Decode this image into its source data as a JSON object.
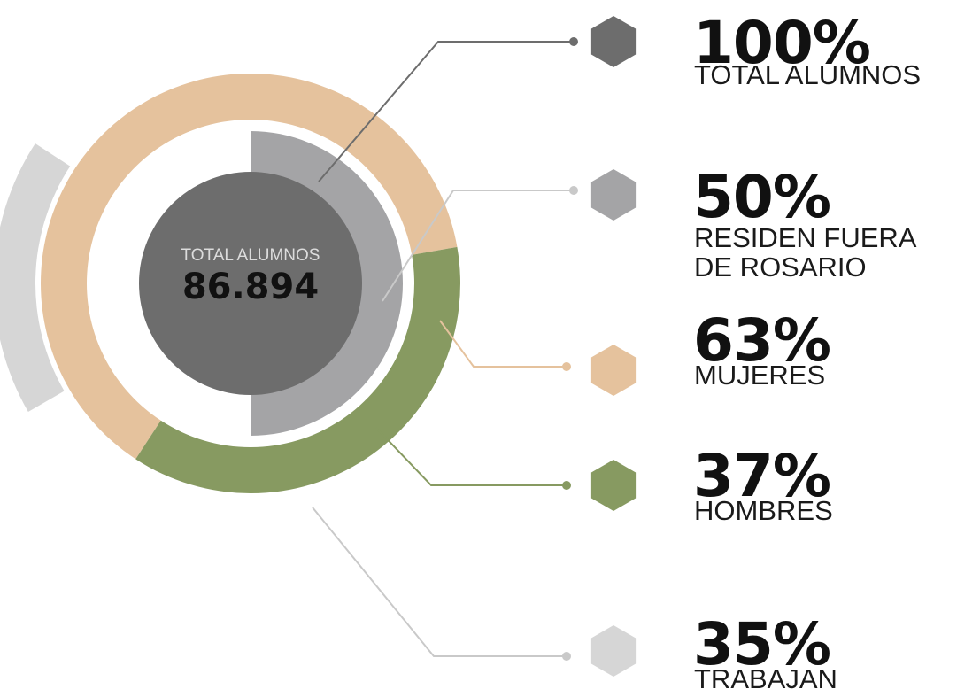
{
  "chart_data": {
    "type": "pie",
    "center": {
      "title": "TOTAL ALUMNOS",
      "value": "86.894"
    },
    "items": [
      {
        "value": 100,
        "percent_label": "100%",
        "label": "TOTAL ALUMNOS",
        "color": "#6d6d6d"
      },
      {
        "value": 50,
        "percent_label": "50%",
        "label": "RESIDEN FUERA\nDE ROSARIO",
        "color": "#a4a4a6"
      },
      {
        "value": 63,
        "percent_label": "63%",
        "label": "MUJERES",
        "color": "#e5c29d"
      },
      {
        "value": 37,
        "percent_label": "37%",
        "label": "HOMBRES",
        "color": "#879a61"
      },
      {
        "value": 35,
        "percent_label": "35%",
        "label": "TRABAJAN",
        "color": "#d6d6d6"
      }
    ]
  }
}
